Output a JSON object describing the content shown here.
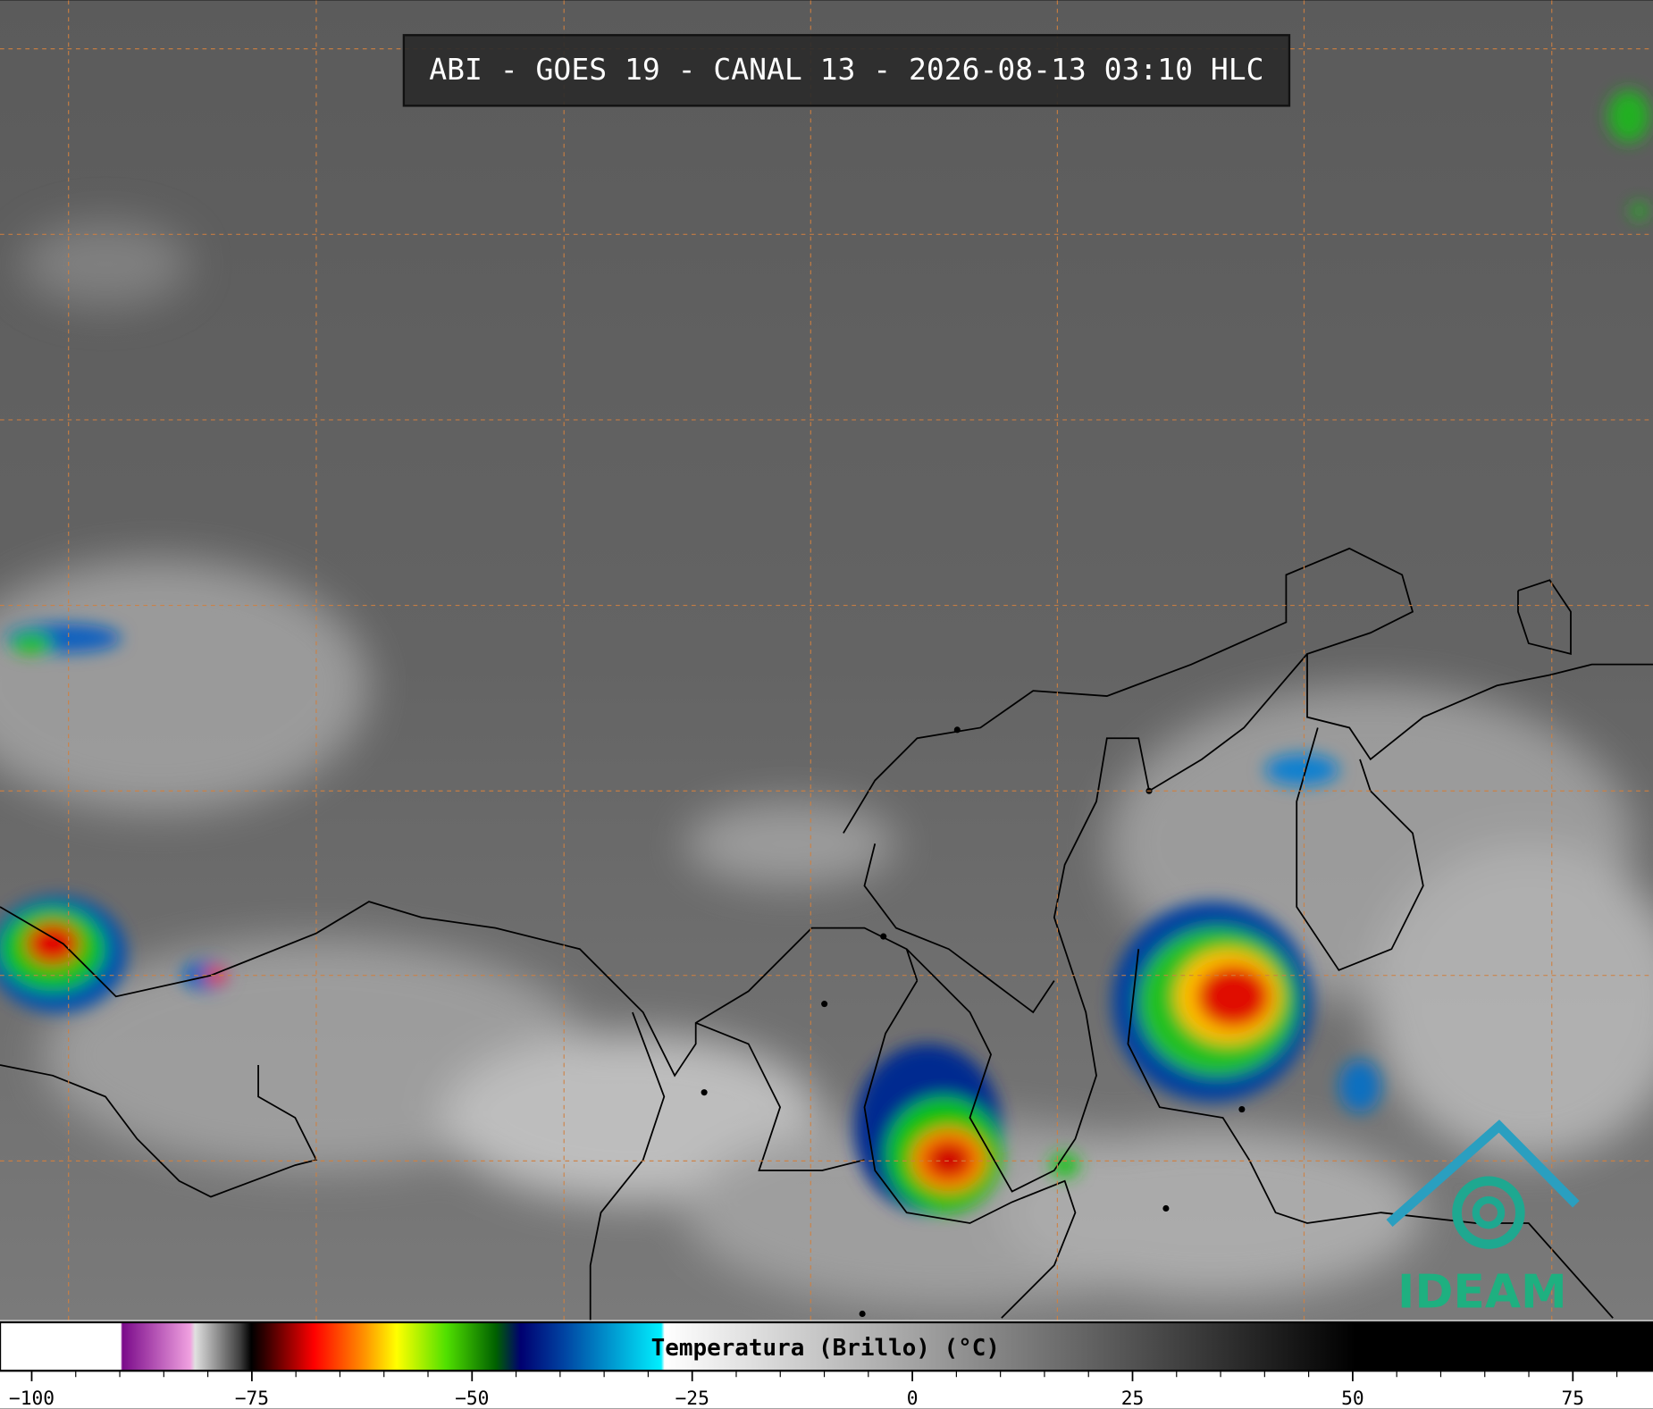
{
  "header": {
    "title": "ABI - GOES 19 - CANAL 13 - 2026-08-13 03:10 HLC"
  },
  "colorbar": {
    "label": "Temperatura (Brillo) (°C)",
    "lim": [
      -103.6,
      84.1
    ],
    "ticks": [
      {
        "value": -100,
        "label": "−100"
      },
      {
        "value": -75,
        "label": "−75"
      },
      {
        "value": -50,
        "label": "−50"
      },
      {
        "value": -25,
        "label": "−25"
      },
      0,
      25,
      50,
      75
    ],
    "minor_ticks": [
      -95,
      -90,
      -85,
      -80,
      -70,
      -65,
      -60,
      -55,
      -45,
      -40,
      -35,
      -30,
      -20,
      -15,
      -10,
      -5,
      5,
      10,
      15,
      20,
      30,
      35,
      40,
      45,
      55,
      60,
      65,
      70,
      80
    ]
  },
  "logo": {
    "text": "IDEAM"
  }
}
